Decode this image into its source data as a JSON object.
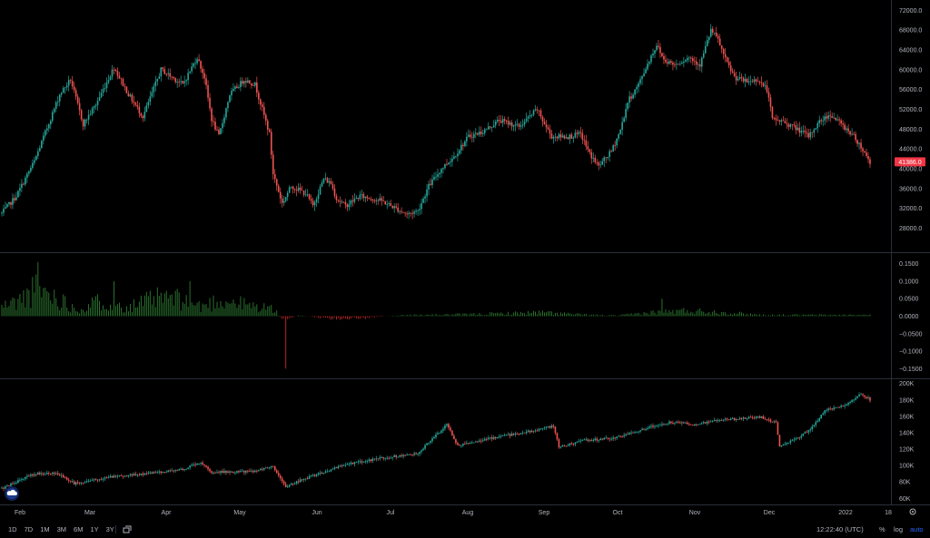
{
  "chart_data": [
    {
      "type": "candlestick",
      "pane": "price",
      "yticks": [
        "72000.0",
        "68000.0",
        "64000.0",
        "60000.0",
        "56000.0",
        "52000.0",
        "48000.0",
        "44000.0",
        "40000.0",
        "36000.0",
        "32000.0",
        "28000.0"
      ],
      "ylim": [
        24600,
        72600
      ],
      "last_price": "41386.0",
      "last_value": 41386,
      "keypoints": [
        [
          0,
          31000
        ],
        [
          8,
          34500
        ],
        [
          18,
          41500
        ],
        [
          32,
          55000
        ],
        [
          38,
          58000
        ],
        [
          45,
          49000
        ],
        [
          52,
          53000
        ],
        [
          62,
          60500
        ],
        [
          70,
          55000
        ],
        [
          78,
          50500
        ],
        [
          88,
          60000
        ],
        [
          100,
          57000
        ],
        [
          108,
          62500
        ],
        [
          112,
          58500
        ],
        [
          116,
          50000
        ],
        [
          120,
          46500
        ],
        [
          126,
          55000
        ],
        [
          134,
          58000
        ],
        [
          140,
          57000
        ],
        [
          148,
          47000
        ],
        [
          150,
          39000
        ],
        [
          155,
          33000
        ],
        [
          160,
          36500
        ],
        [
          168,
          35000
        ],
        [
          172,
          32500
        ],
        [
          178,
          38000
        ],
        [
          182,
          37000
        ],
        [
          185,
          34000
        ],
        [
          190,
          32500
        ],
        [
          198,
          34500
        ],
        [
          210,
          33500
        ],
        [
          224,
          30800
        ],
        [
          230,
          31500
        ],
        [
          236,
          36500
        ],
        [
          243,
          40000
        ],
        [
          250,
          42500
        ],
        [
          258,
          46500
        ],
        [
          266,
          47500
        ],
        [
          275,
          49800
        ],
        [
          286,
          48500
        ],
        [
          296,
          52000
        ],
        [
          300,
          49000
        ],
        [
          304,
          46500
        ],
        [
          314,
          46500
        ],
        [
          320,
          47000
        ],
        [
          325,
          43000
        ],
        [
          330,
          40500
        ],
        [
          337,
          43500
        ],
        [
          342,
          47800
        ],
        [
          346,
          53500
        ],
        [
          352,
          57000
        ],
        [
          358,
          62000
        ],
        [
          362,
          65000
        ],
        [
          366,
          62000
        ],
        [
          372,
          61000
        ],
        [
          380,
          62500
        ],
        [
          386,
          61000
        ],
        [
          392,
          68000
        ],
        [
          396,
          66000
        ],
        [
          400,
          62000
        ],
        [
          405,
          58500
        ],
        [
          412,
          57500
        ],
        [
          418,
          58000
        ],
        [
          423,
          56000
        ],
        [
          426,
          50000
        ],
        [
          432,
          49500
        ],
        [
          440,
          48000
        ],
        [
          446,
          46500
        ],
        [
          452,
          49500
        ],
        [
          458,
          51000
        ],
        [
          464,
          49000
        ],
        [
          470,
          47000
        ],
        [
          474,
          45000
        ],
        [
          480,
          41300
        ]
      ],
      "seed": 7
    },
    {
      "type": "histogram",
      "pane": "rate",
      "yticks": [
        "0.1500",
        "0.1000",
        "0.0500",
        "0.0000",
        "−0.0500",
        "−0.1000",
        "−0.1500"
      ],
      "ylim": [
        -0.17,
        0.17
      ],
      "keypoints": [
        [
          0,
          0.03
        ],
        [
          10,
          0.05
        ],
        [
          20,
          0.09
        ],
        [
          30,
          0.06
        ],
        [
          42,
          0.02
        ],
        [
          55,
          0.05
        ],
        [
          70,
          0.03
        ],
        [
          82,
          0.05
        ],
        [
          90,
          0.06
        ],
        [
          100,
          0.05
        ],
        [
          110,
          0.03
        ],
        [
          120,
          0.05
        ],
        [
          132,
          0.04
        ],
        [
          140,
          0.03
        ],
        [
          150,
          0.025
        ],
        [
          155,
          -0.01
        ],
        [
          165,
          0.003
        ],
        [
          180,
          -0.008
        ],
        [
          200,
          -0.006
        ],
        [
          220,
          0.003
        ],
        [
          260,
          0.006
        ],
        [
          300,
          0.012
        ],
        [
          320,
          0.005
        ],
        [
          340,
          0.002
        ],
        [
          360,
          0.012
        ],
        [
          380,
          0.018
        ],
        [
          400,
          0.012
        ],
        [
          420,
          0.004
        ],
        [
          440,
          0.004
        ],
        [
          480,
          0.004
        ]
      ],
      "spikes": [
        [
          157,
          -0.15
        ],
        [
          20,
          0.155
        ],
        [
          104,
          0.1
        ],
        [
          62,
          0.1
        ],
        [
          365,
          0.05
        ]
      ],
      "seed": 11
    },
    {
      "type": "candlestick",
      "pane": "open_interest",
      "yticks": [
        "200K",
        "180K",
        "160K",
        "140K",
        "120K",
        "100K",
        "80K",
        "60K"
      ],
      "ylim": [
        57000,
        203000
      ],
      "keypoints": [
        [
          0,
          72000
        ],
        [
          18,
          90000
        ],
        [
          30,
          91000
        ],
        [
          40,
          78000
        ],
        [
          60,
          86000
        ],
        [
          80,
          90000
        ],
        [
          100,
          95000
        ],
        [
          110,
          104000
        ],
        [
          116,
          92000
        ],
        [
          140,
          93000
        ],
        [
          150,
          99000
        ],
        [
          157,
          75000
        ],
        [
          170,
          86000
        ],
        [
          190,
          101000
        ],
        [
          210,
          109000
        ],
        [
          230,
          115000
        ],
        [
          246,
          150000
        ],
        [
          252,
          124000
        ],
        [
          265,
          131000
        ],
        [
          290,
          141000
        ],
        [
          305,
          148000
        ],
        [
          308,
          122000
        ],
        [
          320,
          130000
        ],
        [
          340,
          134000
        ],
        [
          355,
          145000
        ],
        [
          370,
          153000
        ],
        [
          382,
          150000
        ],
        [
          400,
          156000
        ],
        [
          420,
          159000
        ],
        [
          428,
          152000
        ],
        [
          430,
          124000
        ],
        [
          440,
          133000
        ],
        [
          448,
          147000
        ],
        [
          455,
          167000
        ],
        [
          466,
          173000
        ],
        [
          475,
          188000
        ],
        [
          480,
          180000
        ]
      ],
      "seed": 23
    }
  ],
  "xaxis": {
    "labels": [
      "Feb",
      "Mar",
      "Apr",
      "May",
      "Jun",
      "Jul",
      "Aug",
      "Sep",
      "Oct",
      "Nov",
      "Dec",
      "2022",
      "18"
    ]
  },
  "toolbar": {
    "ranges": [
      "1D",
      "7D",
      "1M",
      "3M",
      "6M",
      "1Y",
      "3Y"
    ],
    "compare_icon": "compare-icon",
    "clock": "12:22:40 (UTC)",
    "percent": "%",
    "log": "log",
    "auto": "auto",
    "settings_icon": "gear-icon"
  },
  "logo_icon": "cloud-logo-icon",
  "colors": {
    "up": "#26a69a",
    "down": "#ef5350",
    "up_bar": "#2e7d32",
    "down_bar": "#c62828",
    "grid": "#2a2e39",
    "price_label": "#f23645"
  }
}
